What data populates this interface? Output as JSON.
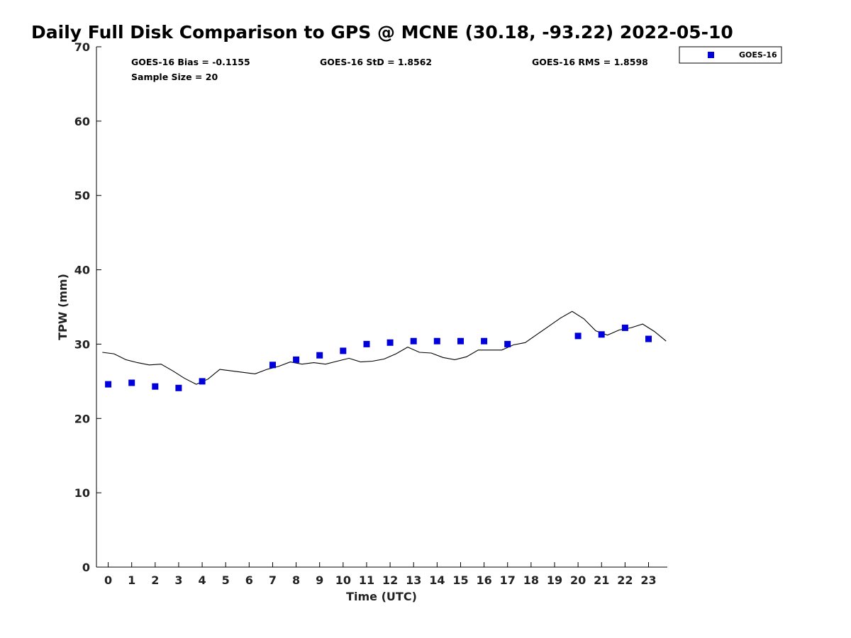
{
  "chart_data": {
    "type": "scatter",
    "title": "Daily Full Disk Comparison to GPS @ MCNE (30.18, -93.22) 2022-05-10",
    "xlabel": "Time (UTC)",
    "ylabel": "TPW (mm)",
    "xlim": [
      -0.5,
      23.8
    ],
    "ylim": [
      0,
      70
    ],
    "xticks": [
      "0",
      "1",
      "2",
      "3",
      "4",
      "5",
      "6",
      "7",
      "8",
      "9",
      "10",
      "11",
      "12",
      "13",
      "14",
      "15",
      "16",
      "17",
      "18",
      "19",
      "20",
      "21",
      "22",
      "23"
    ],
    "yticks": [
      "0",
      "10",
      "20",
      "30",
      "40",
      "50",
      "60",
      "70"
    ],
    "grid": false,
    "legend_position": "top-right-outside",
    "stats": {
      "bias": "GOES-16 Bias = -0.1155",
      "std": "GOES-16 StD = 1.8562",
      "rms": "GOES-16 RMS = 1.8598",
      "sample": "Sample Size = 20"
    },
    "series": [
      {
        "name": "GOES-16",
        "kind": "scatter",
        "color": "#0000dd",
        "x": [
          0,
          1,
          2,
          3,
          4,
          7,
          8,
          9,
          10,
          11,
          12,
          13,
          14,
          15,
          16,
          17,
          20,
          21,
          22,
          23
        ],
        "y": [
          24.6,
          24.8,
          24.3,
          24.1,
          25.0,
          27.2,
          27.9,
          28.5,
          29.1,
          30.0,
          30.2,
          30.4,
          30.4,
          30.4,
          30.4,
          30.0,
          31.1,
          31.3,
          32.2,
          30.7
        ]
      },
      {
        "kind": "line",
        "color": "#000000",
        "x": [
          -0.25,
          0.25,
          0.75,
          1.25,
          1.75,
          2.25,
          2.75,
          3.25,
          3.75,
          4.25,
          4.75,
          5.25,
          5.75,
          6.25,
          6.75,
          7.25,
          7.75,
          8.25,
          8.75,
          9.25,
          9.75,
          10.25,
          10.75,
          11.25,
          11.75,
          12.25,
          12.75,
          13.25,
          13.75,
          14.25,
          14.75,
          15.25,
          15.75,
          16.25,
          16.75,
          17.25,
          17.75,
          18.25,
          18.75,
          19.25,
          19.75,
          20.25,
          20.75,
          21.25,
          21.75,
          22.25,
          22.75,
          23.25,
          23.75
        ],
        "y": [
          28.9,
          28.7,
          27.9,
          27.5,
          27.2,
          27.3,
          26.4,
          25.4,
          24.6,
          25.3,
          26.6,
          26.4,
          26.2,
          26.0,
          26.6,
          27.0,
          27.6,
          27.3,
          27.5,
          27.3,
          27.7,
          28.1,
          27.6,
          27.7,
          28.0,
          28.7,
          29.6,
          28.9,
          28.8,
          28.2,
          27.9,
          28.3,
          29.2,
          29.2,
          29.2,
          29.9,
          30.2,
          31.3,
          32.4,
          33.5,
          34.4,
          33.4,
          31.8,
          31.2,
          31.9,
          32.2,
          32.7,
          31.7,
          30.4
        ]
      }
    ]
  }
}
